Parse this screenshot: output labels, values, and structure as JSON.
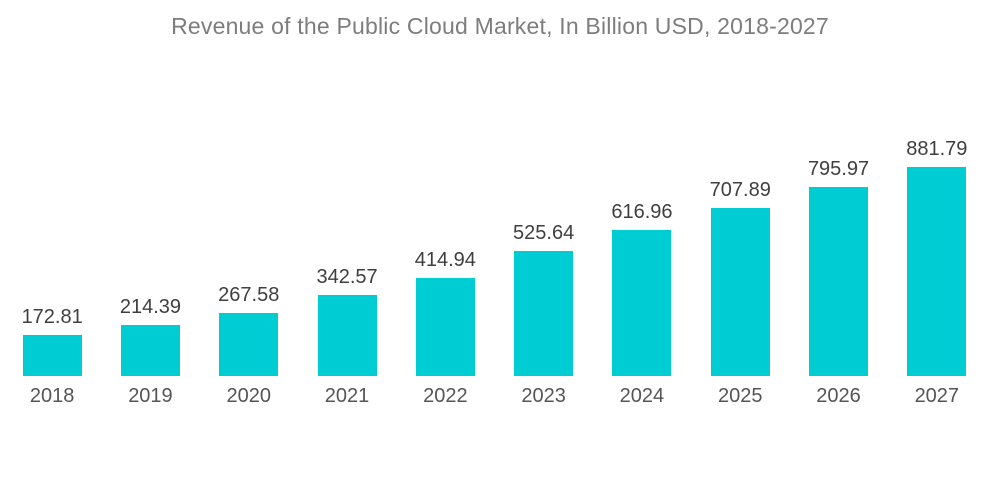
{
  "chart_data": {
    "type": "bar",
    "title": "Revenue of the Public Cloud Market, In Billion USD, 2018-2027",
    "categories": [
      "2018",
      "2019",
      "2020",
      "2021",
      "2022",
      "2023",
      "2024",
      "2025",
      "2026",
      "2027"
    ],
    "values": [
      172.81,
      214.39,
      267.58,
      342.57,
      414.94,
      525.64,
      616.96,
      707.89,
      795.97,
      881.79
    ],
    "value_labels": [
      "172.81",
      "214.39",
      "267.58",
      "342.57",
      "414.94",
      "525.64",
      "616.96",
      "707.89",
      "795.97",
      "881.79"
    ],
    "xlabel": "",
    "ylabel": "",
    "ylim": [
      0,
      920
    ],
    "grid": false,
    "legend_position": "none",
    "value_labels_visible": true,
    "colors": {
      "bar": "#00CCD3",
      "title": "#7d7d7d",
      "value_label": "#3f3f3f",
      "axis_label": "#555555",
      "background": "#ffffff"
    }
  }
}
